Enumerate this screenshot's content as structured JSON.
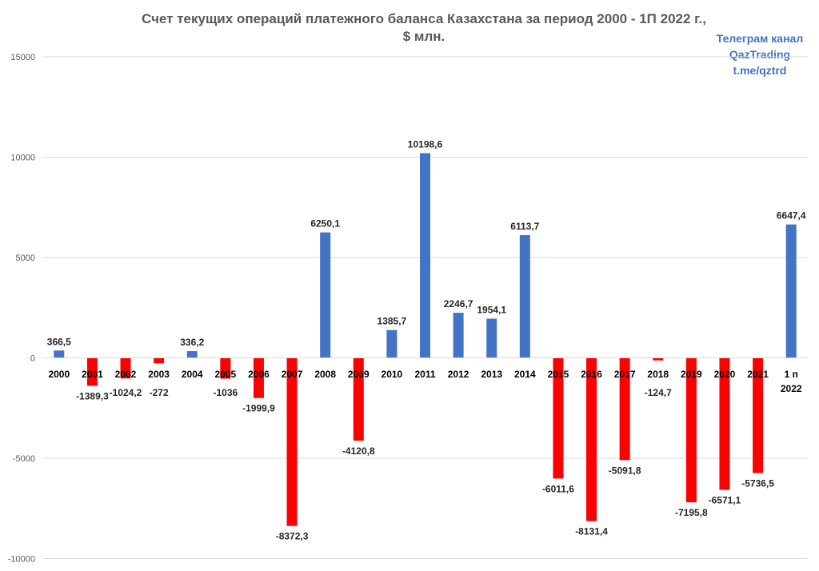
{
  "title_line1": "Счет текущих операций платежного баланса Казахстана за период 2000 - 1П 2022 г.,",
  "title_line2": "$ млн.",
  "watermark": [
    "Телеграм канал",
    "QazTrading",
    "t.me/qztrd"
  ],
  "colors": {
    "positive": "#4472c4",
    "negative": "#ff0000",
    "grid": "#d9d9d9",
    "axis_text": "#595959",
    "label_text": "#262626"
  },
  "chart_data": {
    "type": "bar",
    "title": "Счет текущих операций платежного баланса Казахстана за период 2000 - 1П 2022 г., $ млн.",
    "categories": [
      "2000",
      "2001",
      "2002",
      "2003",
      "2004",
      "2005",
      "2006",
      "2007",
      "2008",
      "2009",
      "2010",
      "2011",
      "2012",
      "2013",
      "2014",
      "2015",
      "2016",
      "2017",
      "2018",
      "2019",
      "2020",
      "2021",
      "1 п 2022"
    ],
    "values": [
      366.5,
      -1389.3,
      -1024.2,
      -272,
      336.2,
      -1036,
      -1999.9,
      -8372.3,
      6250.1,
      -4120.8,
      1385.7,
      10198.6,
      2246.7,
      1954.1,
      6113.7,
      -6011.6,
      -8131.4,
      -5091.8,
      -124.7,
      -7195.8,
      -6571.1,
      -5736.5,
      6647.4
    ],
    "value_labels": [
      "366,5",
      "-1389,3",
      "-1024,2",
      "-272",
      "336,2",
      "-1036",
      "-1999,9",
      "-8372,3",
      "6250,1",
      "-4120,8",
      "1385,7",
      "10198,6",
      "2246,7",
      "1954,1",
      "6113,7",
      "-6011,6",
      "-8131,4",
      "-5091,8",
      "-124,7",
      "-7195,8",
      "-6571,1",
      "-5736,5",
      "6647,4"
    ],
    "yticks": [
      15000,
      10000,
      5000,
      0,
      -5000,
      -10000
    ],
    "ylim": [
      -10000,
      15000
    ],
    "xlabel": "",
    "ylabel": "",
    "grid": true,
    "legend": "none"
  }
}
